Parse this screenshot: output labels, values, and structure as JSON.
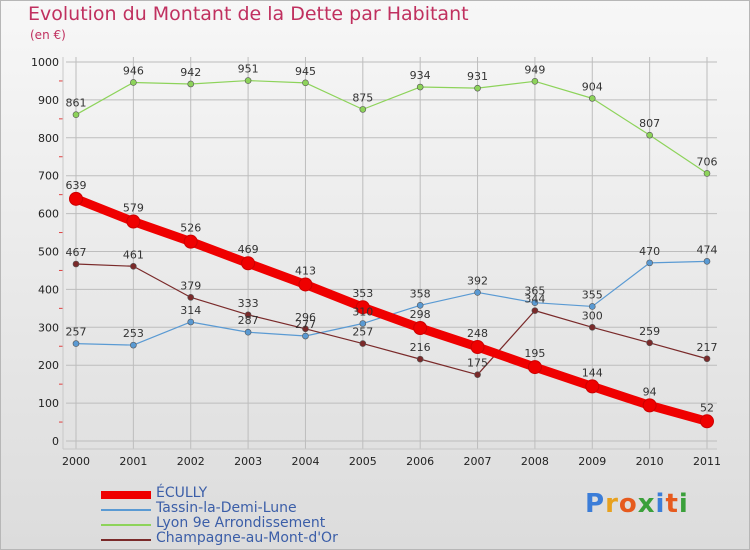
{
  "title": "Evolution du Montant de la Dette par Habitant",
  "unit": "(en €)",
  "logo": {
    "text": "Proxiti",
    "letter_colors": [
      "#3b7dd8",
      "#e8a11e",
      "#e65a1e",
      "#3aa03a",
      "#3b7dd8",
      "#e65a1e",
      "#3aa03a"
    ]
  },
  "chart_data": {
    "type": "line",
    "title": "Evolution du Montant de la Dette par Habitant",
    "ylabel": "(en €)",
    "x": [
      "2000",
      "2001",
      "2002",
      "2003",
      "2004",
      "2005",
      "2006",
      "2007",
      "2008",
      "2009",
      "2010",
      "2011"
    ],
    "ylim": [
      0,
      1000
    ],
    "yticks": [
      0,
      100,
      200,
      300,
      400,
      500,
      600,
      700,
      800,
      900,
      1000
    ],
    "grid": true,
    "legend_position": "bottom-left",
    "series": [
      {
        "name": "ÉCULLY",
        "color": "#ef0000",
        "emphasis": true,
        "values": [
          639,
          579,
          526,
          469,
          413,
          353,
          298,
          248,
          195,
          144,
          94,
          52
        ]
      },
      {
        "name": "Tassin-la-Demi-Lune",
        "color": "#5a9ad3",
        "emphasis": false,
        "values": [
          257,
          253,
          314,
          287,
          277,
          310,
          358,
          392,
          365,
          355,
          470,
          474
        ]
      },
      {
        "name": "Lyon 9e  Arrondissement",
        "color": "#8dd35a",
        "emphasis": false,
        "values": [
          861,
          946,
          942,
          951,
          945,
          875,
          934,
          931,
          949,
          904,
          807,
          706
        ]
      },
      {
        "name": "Champagne-au-Mont-d'Or",
        "color": "#7a2a2a",
        "emphasis": false,
        "values": [
          467,
          461,
          379,
          333,
          296,
          257,
          216,
          175,
          344,
          300,
          259,
          217
        ]
      }
    ]
  }
}
